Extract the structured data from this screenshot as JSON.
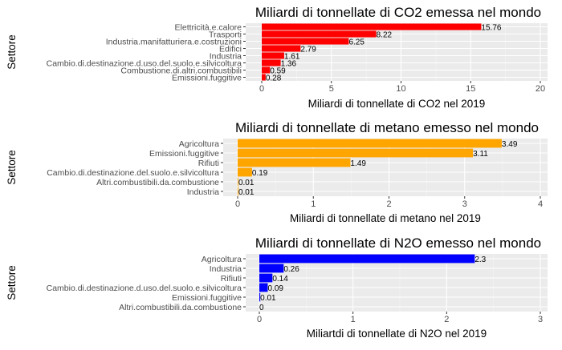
{
  "chart_data": [
    {
      "type": "bar",
      "orientation": "horizontal",
      "title": "Miliardi di tonnellate di CO2 emessa nel mondo",
      "xlabel": "Miliardi di tonnellate di CO2 nel 2019",
      "ylabel": "Settore",
      "xlim": [
        0,
        20
      ],
      "xticks": [
        0,
        5,
        10,
        15,
        20
      ],
      "bar_color": "#ff0000",
      "grid": true,
      "categories": [
        "Elettricità.e.calore",
        "Trasporti",
        "Industria.manifatturiera.e.costruzioni",
        "Edifici",
        "Industria",
        "Cambio.di.destinazione.d.uso.del.suolo.e.silvicoltura",
        "Combustione.di.altri.combustibili",
        "Emissioni.fuggitive"
      ],
      "values": [
        15.76,
        8.22,
        6.25,
        2.79,
        1.61,
        1.36,
        0.59,
        0.28
      ],
      "value_labels": [
        "15.76",
        "8.22",
        "6.25",
        "2.79",
        "1.61",
        "1.36",
        "0.59",
        "0.28"
      ]
    },
    {
      "type": "bar",
      "orientation": "horizontal",
      "title": "Miliardi di tonnellate di metano emesso nel mondo",
      "xlabel": "Miliardi di tonnellate di metano nel 2019",
      "ylabel": "Settore",
      "xlim": [
        0,
        4
      ],
      "xticks": [
        0,
        1,
        2,
        3,
        4
      ],
      "bar_color": "#ffa500",
      "grid": true,
      "categories": [
        "Agricoltura",
        "Emissioni.fuggitive",
        "Rifiuti",
        "Cambio.di.destinazione.del.suolo.e.silvicoltura",
        "Altri.combustibili.da.combustione",
        "Industria"
      ],
      "values": [
        3.49,
        3.11,
        1.49,
        0.19,
        0.01,
        0.01
      ],
      "value_labels": [
        "3.49",
        "3.11",
        "1.49",
        "0.19",
        "0.01",
        "0.01"
      ]
    },
    {
      "type": "bar",
      "orientation": "horizontal",
      "title": "Miliardi di tonnellate di N2O emesso nel mondo",
      "xlabel": "Miliartdi di tonnellate di N2O nel 2019",
      "ylabel": "Settore",
      "xlim": [
        0,
        3
      ],
      "xticks": [
        0,
        1,
        2,
        3
      ],
      "bar_color": "#0000ff",
      "grid": true,
      "categories": [
        "Agricoltura",
        "Industria",
        "Rifiuti",
        "Cambio.di.destinazione.d.uso.del.suolo.e.silvicoltura",
        "Emissioni.fuggitive",
        "Altri.combustibili.da.combustione"
      ],
      "values": [
        2.3,
        0.26,
        0.14,
        0.09,
        0.01,
        0
      ],
      "value_labels": [
        "2.3",
        "0.26",
        "0.14",
        "0.09",
        "0.01",
        "0"
      ]
    }
  ]
}
